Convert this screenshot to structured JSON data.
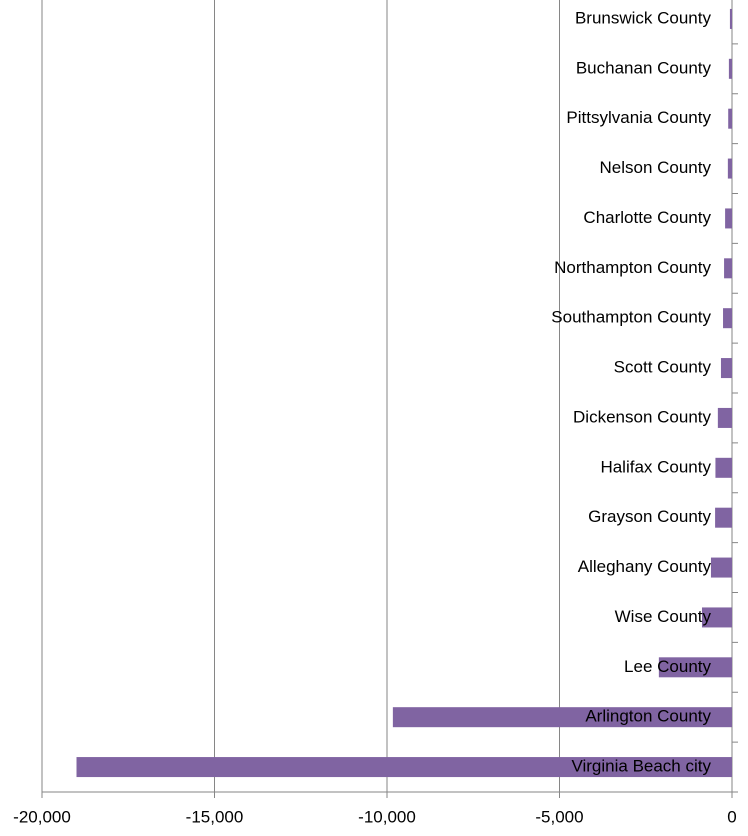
{
  "chart_data": {
    "type": "bar",
    "orientation": "horizontal",
    "categories": [
      "Brunswick County",
      "Buchanan County",
      "Pittsylvania County",
      "Nelson County",
      "Charlotte County",
      "Northampton County",
      "Southampton County",
      "Scott County",
      "Dickenson County",
      "Halifax County",
      "Grayson County",
      "Alleghany County",
      "Wise County",
      "Lee County",
      "Arlington County",
      "Virginia Beach city"
    ],
    "values": [
      -60,
      -90,
      -110,
      -120,
      -200,
      -230,
      -260,
      -320,
      -410,
      -480,
      -490,
      -610,
      -870,
      -2120,
      -9830,
      -19000
    ],
    "color": "#8064a2",
    "xlim": [
      -20000,
      0
    ],
    "xticks": [
      {
        "value": -20000,
        "label": "-20,000"
      },
      {
        "value": -15000,
        "label": "-15,000"
      },
      {
        "value": -10000,
        "label": "-10,000"
      },
      {
        "value": -5000,
        "label": "-5,000"
      },
      0
    ],
    "grid": true
  }
}
